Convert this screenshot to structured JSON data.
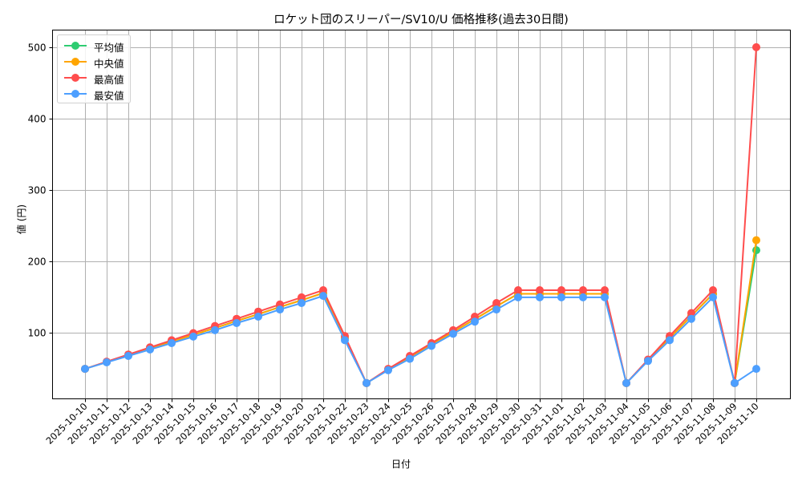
{
  "chart_data": {
    "type": "line",
    "title": "ロケット団のスリーパー/SV10/U 価格推移(過去30日間)",
    "xlabel": "日付",
    "ylabel": "値 (円)",
    "ylim": [
      8,
      524
    ],
    "yticks": [
      100,
      200,
      300,
      400,
      500
    ],
    "grid": true,
    "legend_position": "upper left",
    "categories": [
      "2025-10-10",
      "2025-10-11",
      "2025-10-12",
      "2025-10-13",
      "2025-10-14",
      "2025-10-15",
      "2025-10-16",
      "2025-10-17",
      "2025-10-18",
      "2025-10-19",
      "2025-10-20",
      "2025-10-21",
      "2025-10-22",
      "2025-10-23",
      "2025-10-24",
      "2025-10-25",
      "2025-10-26",
      "2025-10-27",
      "2025-10-28",
      "2025-10-29",
      "2025-10-30",
      "2025-10-31",
      "2025-11-01",
      "2025-11-02",
      "2025-11-03",
      "2025-11-04",
      "2025-11-05",
      "2025-11-06",
      "2025-11-07",
      "2025-11-08",
      "2025-11-09",
      "2025-11-10"
    ],
    "series": [
      {
        "name": "平均値",
        "color": "#2ecc71",
        "values": [
          50,
          59.5,
          69,
          78.5,
          88,
          97.5,
          107,
          117,
          126.5,
          136.5,
          146,
          156,
          93,
          30,
          49,
          66,
          84,
          101.5,
          119.5,
          137.5,
          155,
          155,
          155,
          155,
          155,
          30,
          62,
          93,
          124,
          155,
          30,
          216
        ]
      },
      {
        "name": "中央値",
        "color": "#ffa500",
        "values": [
          50,
          59.5,
          69,
          78.5,
          88,
          97.5,
          107,
          117,
          126.5,
          136.5,
          146,
          156,
          93,
          30,
          49,
          66,
          84,
          101.5,
          119.5,
          137.5,
          155,
          155,
          155,
          155,
          155,
          30,
          62,
          93,
          124,
          155,
          30,
          230
        ]
      },
      {
        "name": "最高値",
        "color": "#ff4d4d",
        "values": [
          50,
          60,
          70,
          80,
          90,
          100,
          110,
          120,
          130,
          140,
          150,
          160,
          96,
          30,
          50,
          68,
          86,
          104,
          123,
          142,
          160,
          160,
          160,
          160,
          160,
          30,
          63,
          96,
          128,
          160,
          30,
          500
        ]
      },
      {
        "name": "最安値",
        "color": "#4d9fff",
        "values": [
          50,
          59,
          68,
          77,
          86,
          95,
          104,
          114,
          123,
          133,
          142,
          152,
          90,
          30,
          48,
          64,
          82,
          99,
          116,
          133,
          150,
          150,
          150,
          150,
          150,
          30,
          61,
          90,
          120,
          150,
          30,
          50
        ]
      }
    ]
  },
  "legend": {
    "items": [
      {
        "label": "平均値",
        "color": "#2ecc71"
      },
      {
        "label": "中央値",
        "color": "#ffa500"
      },
      {
        "label": "最高値",
        "color": "#ff4d4d"
      },
      {
        "label": "最安値",
        "color": "#4d9fff"
      }
    ]
  }
}
